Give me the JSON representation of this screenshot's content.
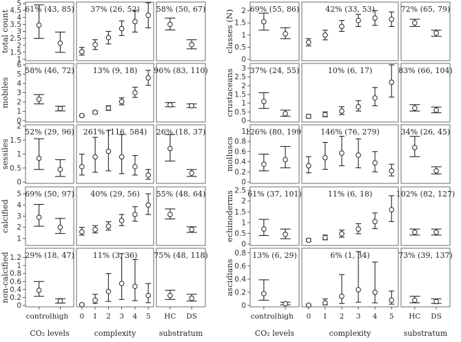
{
  "figure": {
    "columns": [
      {
        "xlabel": "CO₂ levels",
        "categories": [
          "control",
          "high"
        ]
      },
      {
        "xlabel": "complexity",
        "categories": [
          "0",
          "1",
          "2",
          "3",
          "4",
          "5"
        ]
      },
      {
        "xlabel": "substratum",
        "categories": [
          "HC",
          "DS"
        ]
      }
    ]
  },
  "chart_data": [
    {
      "type": "errorbar-panel-grid",
      "ylabel": "total count",
      "ylim": [
        1,
        5
      ],
      "yticks": [
        1,
        1.5,
        2,
        2.5,
        3,
        3.5,
        4,
        4.5,
        5
      ],
      "panels": [
        {
          "annotation": "61% (43, 85)",
          "points": [
            {
              "x": "control",
              "y": 3.45,
              "lo": 2.5,
              "hi": 4.9
            },
            {
              "x": "high",
              "y": 2.15,
              "lo": 1.5,
              "hi": 2.95
            }
          ]
        },
        {
          "annotation": "37% (26, 52)",
          "points": [
            {
              "x": "0",
              "y": 1.55,
              "lo": 1.3,
              "hi": 1.85
            },
            {
              "x": "1",
              "y": 2.05,
              "lo": 1.7,
              "hi": 2.4
            },
            {
              "x": "2",
              "y": 2.55,
              "lo": 2.1,
              "hi": 3.0
            },
            {
              "x": "3",
              "y": 3.2,
              "lo": 2.7,
              "hi": 3.75
            },
            {
              "x": "4",
              "y": 3.7,
              "lo": 2.95,
              "hi": 4.5
            },
            {
              "x": "5",
              "y": 4.15,
              "lo": 3.25,
              "hi": 5.05
            }
          ]
        },
        {
          "annotation": "58% (50, 67)",
          "points": [
            {
              "x": "HC",
              "y": 3.5,
              "lo": 3.1,
              "hi": 3.95
            },
            {
              "x": "DS",
              "y": 2.05,
              "lo": 1.75,
              "hi": 2.4
            }
          ]
        }
      ]
    },
    {
      "type": "errorbar-panel-grid",
      "ylabel": "mobiles",
      "ylim": [
        0,
        6
      ],
      "yticks": [
        0,
        1,
        2,
        3,
        4,
        5,
        6
      ],
      "panels": [
        {
          "annotation": "58% (46, 72)",
          "points": [
            {
              "x": "control",
              "y": 2.3,
              "lo": 1.8,
              "hi": 2.8
            },
            {
              "x": "high",
              "y": 1.3,
              "lo": 1.05,
              "hi": 1.55
            }
          ]
        },
        {
          "annotation": "13% (9, 18)",
          "points": [
            {
              "x": "0",
              "y": 0.55,
              "lo": 0.45,
              "hi": 0.65
            },
            {
              "x": "1",
              "y": 0.9,
              "lo": 0.75,
              "hi": 1.05
            },
            {
              "x": "2",
              "y": 1.35,
              "lo": 1.1,
              "hi": 1.6
            },
            {
              "x": "3",
              "y": 2.05,
              "lo": 1.7,
              "hi": 2.45
            },
            {
              "x": "4",
              "y": 3.0,
              "lo": 2.5,
              "hi": 3.6
            },
            {
              "x": "5",
              "y": 4.6,
              "lo": 3.8,
              "hi": 5.4
            }
          ]
        },
        {
          "annotation": "96% (83, 110)",
          "points": [
            {
              "x": "HC",
              "y": 1.7,
              "lo": 1.5,
              "hi": 1.95
            },
            {
              "x": "DS",
              "y": 1.6,
              "lo": 1.4,
              "hi": 1.8
            }
          ]
        }
      ]
    },
    {
      "type": "errorbar-panel-grid",
      "ylabel": "sessiles",
      "ylim": [
        0,
        2
      ],
      "yticks": [
        0,
        0.5,
        1,
        1.5,
        2
      ],
      "panels": [
        {
          "annotation": "52% (29, 96)",
          "points": [
            {
              "x": "control",
              "y": 0.85,
              "lo": 0.45,
              "hi": 1.55
            },
            {
              "x": "high",
              "y": 0.45,
              "lo": 0.2,
              "hi": 0.8
            }
          ]
        },
        {
          "annotation": "261% (116, 584)",
          "points": [
            {
              "x": "0",
              "y": 0.55,
              "lo": 0.25,
              "hi": 1.0
            },
            {
              "x": "1",
              "y": 0.9,
              "lo": 0.35,
              "hi": 1.6
            },
            {
              "x": "2",
              "y": 1.1,
              "lo": 0.4,
              "hi": 1.85
            },
            {
              "x": "3",
              "y": 0.9,
              "lo": 0.3,
              "hi": 1.7
            },
            {
              "x": "4",
              "y": 0.55,
              "lo": 0.25,
              "hi": 0.95
            },
            {
              "x": "5",
              "y": 0.25,
              "lo": 0.1,
              "hi": 0.45
            }
          ]
        },
        {
          "annotation": "26% (18, 37)",
          "points": [
            {
              "x": "HC",
              "y": 1.2,
              "lo": 0.75,
              "hi": 1.7
            },
            {
              "x": "DS",
              "y": 0.32,
              "lo": 0.2,
              "hi": 0.45
            }
          ]
        }
      ]
    },
    {
      "type": "errorbar-panel-grid",
      "ylabel": "calcified",
      "ylim": [
        0.5,
        5.5
      ],
      "yticks": [
        1,
        2,
        3,
        4,
        5
      ],
      "panels": [
        {
          "annotation": "69% (50, 97)",
          "points": [
            {
              "x": "control",
              "y": 2.9,
              "lo": 2.1,
              "hi": 4.05
            },
            {
              "x": "high",
              "y": 2.0,
              "lo": 1.45,
              "hi": 2.8
            }
          ]
        },
        {
          "annotation": "40% (29, 56)",
          "points": [
            {
              "x": "0",
              "y": 1.6,
              "lo": 1.3,
              "hi": 2.0
            },
            {
              "x": "1",
              "y": 1.8,
              "lo": 1.5,
              "hi": 2.15
            },
            {
              "x": "2",
              "y": 2.1,
              "lo": 1.75,
              "hi": 2.5
            },
            {
              "x": "3",
              "y": 2.6,
              "lo": 2.15,
              "hi": 3.15
            },
            {
              "x": "4",
              "y": 3.15,
              "lo": 2.55,
              "hi": 3.85
            },
            {
              "x": "5",
              "y": 4.0,
              "lo": 3.15,
              "hi": 5.0
            }
          ]
        },
        {
          "annotation": "55% (48, 64)",
          "points": [
            {
              "x": "HC",
              "y": 3.15,
              "lo": 2.75,
              "hi": 3.65
            },
            {
              "x": "DS",
              "y": 1.8,
              "lo": 1.55,
              "hi": 2.05
            }
          ]
        }
      ]
    },
    {
      "type": "errorbar-panel-grid",
      "ylabel": "non-calcified",
      "ylim": [
        0,
        1.4
      ],
      "yticks": [
        0,
        0.2,
        0.4,
        0.6,
        0.8,
        1.0,
        1.2
      ],
      "panels": [
        {
          "annotation": "29% (18, 47)",
          "points": [
            {
              "x": "control",
              "y": 0.38,
              "lo": 0.23,
              "hi": 0.6
            },
            {
              "x": "high",
              "y": 0.11,
              "lo": 0.06,
              "hi": 0.17
            }
          ]
        },
        {
          "annotation": "11% (3, 36)",
          "points": [
            {
              "x": "0",
              "y": 0.02,
              "lo": 0.01,
              "hi": 0.04
            },
            {
              "x": "1",
              "y": 0.13,
              "lo": 0.05,
              "hi": 0.28
            },
            {
              "x": "2",
              "y": 0.35,
              "lo": 0.1,
              "hi": 0.8
            },
            {
              "x": "3",
              "y": 0.55,
              "lo": 0.15,
              "hi": 1.3
            },
            {
              "x": "4",
              "y": 0.48,
              "lo": 0.12,
              "hi": 1.15
            },
            {
              "x": "5",
              "y": 0.25,
              "lo": 0.07,
              "hi": 0.55
            }
          ]
        },
        {
          "annotation": "75% (48, 118)",
          "points": [
            {
              "x": "HC",
              "y": 0.25,
              "lo": 0.15,
              "hi": 0.38
            },
            {
              "x": "DS",
              "y": 0.18,
              "lo": 0.11,
              "hi": 0.28
            }
          ]
        }
      ]
    },
    {
      "type": "errorbar-panel-grid",
      "ylabel": "classes (N)",
      "ylim": [
        0,
        2.3
      ],
      "yticks": [
        0,
        0.5,
        1.0,
        1.5,
        2.0
      ],
      "panels": [
        {
          "annotation": "69% (55, 86)",
          "points": [
            {
              "x": "control",
              "y": 1.55,
              "lo": 1.2,
              "hi": 1.9
            },
            {
              "x": "high",
              "y": 1.05,
              "lo": 0.85,
              "hi": 1.3
            }
          ]
        },
        {
          "annotation": "42% (33, 53)",
          "points": [
            {
              "x": "0",
              "y": 0.7,
              "lo": 0.55,
              "hi": 0.85
            },
            {
              "x": "1",
              "y": 1.0,
              "lo": 0.8,
              "hi": 1.2
            },
            {
              "x": "2",
              "y": 1.35,
              "lo": 1.15,
              "hi": 1.6
            },
            {
              "x": "3",
              "y": 1.6,
              "lo": 1.35,
              "hi": 1.85
            },
            {
              "x": "4",
              "y": 1.7,
              "lo": 1.4,
              "hi": 2.0
            },
            {
              "x": "5",
              "y": 1.65,
              "lo": 1.35,
              "hi": 1.95
            }
          ]
        },
        {
          "annotation": "72% (65, 79)",
          "points": [
            {
              "x": "HC",
              "y": 1.5,
              "lo": 1.35,
              "hi": 1.65
            },
            {
              "x": "DS",
              "y": 1.08,
              "lo": 0.95,
              "hi": 1.2
            }
          ]
        }
      ]
    },
    {
      "type": "errorbar-panel-grid",
      "ylabel": "crustaceans",
      "ylim": [
        0,
        3.2
      ],
      "yticks": [
        0,
        0.5,
        1.0,
        1.5,
        2.0,
        2.5,
        3.0
      ],
      "panels": [
        {
          "annotation": "37% (24, 55)",
          "points": [
            {
              "x": "control",
              "y": 1.1,
              "lo": 0.7,
              "hi": 1.6
            },
            {
              "x": "high",
              "y": 0.4,
              "lo": 0.25,
              "hi": 0.6
            }
          ]
        },
        {
          "annotation": "10% (6, 17)",
          "points": [
            {
              "x": "0",
              "y": 0.25,
              "lo": 0.15,
              "hi": 0.35
            },
            {
              "x": "1",
              "y": 0.35,
              "lo": 0.22,
              "hi": 0.5
            },
            {
              "x": "2",
              "y": 0.55,
              "lo": 0.35,
              "hi": 0.8
            },
            {
              "x": "3",
              "y": 0.8,
              "lo": 0.55,
              "hi": 1.15
            },
            {
              "x": "4",
              "y": 1.3,
              "lo": 0.85,
              "hi": 1.9
            },
            {
              "x": "5",
              "y": 2.2,
              "lo": 1.35,
              "hi": 3.2
            }
          ]
        },
        {
          "annotation": "83% (66, 104)",
          "points": [
            {
              "x": "HC",
              "y": 0.72,
              "lo": 0.55,
              "hi": 0.92
            },
            {
              "x": "DS",
              "y": 0.6,
              "lo": 0.45,
              "hi": 0.78
            }
          ]
        }
      ]
    },
    {
      "type": "errorbar-panel-grid",
      "ylabel": "molluscs",
      "ylim": [
        0,
        1.1
      ],
      "yticks": [
        0,
        0.2,
        0.4,
        0.6,
        0.8,
        1.0
      ],
      "panels": [
        {
          "annotation": "126% (80, 199)",
          "points": [
            {
              "x": "control",
              "y": 0.35,
              "lo": 0.22,
              "hi": 0.55
            },
            {
              "x": "high",
              "y": 0.44,
              "lo": 0.28,
              "hi": 0.7
            }
          ]
        },
        {
          "annotation": "146% (76, 279)",
          "points": [
            {
              "x": "0",
              "y": 0.32,
              "lo": 0.18,
              "hi": 0.5
            },
            {
              "x": "1",
              "y": 0.48,
              "lo": 0.25,
              "hi": 0.78
            },
            {
              "x": "2",
              "y": 0.57,
              "lo": 0.32,
              "hi": 0.9
            },
            {
              "x": "3",
              "y": 0.53,
              "lo": 0.28,
              "hi": 0.85
            },
            {
              "x": "4",
              "y": 0.38,
              "lo": 0.2,
              "hi": 0.6
            },
            {
              "x": "5",
              "y": 0.22,
              "lo": 0.12,
              "hi": 0.35
            }
          ]
        },
        {
          "annotation": "34% (26, 45)",
          "points": [
            {
              "x": "HC",
              "y": 0.68,
              "lo": 0.5,
              "hi": 0.9
            },
            {
              "x": "DS",
              "y": 0.22,
              "lo": 0.16,
              "hi": 0.3
            }
          ]
        }
      ]
    },
    {
      "type": "errorbar-panel-grid",
      "ylabel": "echinoderms",
      "ylim": [
        0,
        2.6
      ],
      "yticks": [
        0,
        0.5,
        1.0,
        1.5,
        2.0,
        2.5
      ],
      "panels": [
        {
          "annotation": "61% (37, 101)",
          "points": [
            {
              "x": "control",
              "y": 0.7,
              "lo": 0.4,
              "hi": 1.15
            },
            {
              "x": "high",
              "y": 0.45,
              "lo": 0.25,
              "hi": 0.7
            }
          ]
        },
        {
          "annotation": "11% (6, 18)",
          "points": [
            {
              "x": "0",
              "y": 0.18,
              "lo": 0.12,
              "hi": 0.25
            },
            {
              "x": "1",
              "y": 0.3,
              "lo": 0.2,
              "hi": 0.42
            },
            {
              "x": "2",
              "y": 0.48,
              "lo": 0.32,
              "hi": 0.65
            },
            {
              "x": "3",
              "y": 0.7,
              "lo": 0.48,
              "hi": 0.95
            },
            {
              "x": "4",
              "y": 1.05,
              "lo": 0.72,
              "hi": 1.45
            },
            {
              "x": "5",
              "y": 1.6,
              "lo": 1.05,
              "hi": 2.25
            }
          ]
        },
        {
          "annotation": "102% (82, 127)",
          "points": [
            {
              "x": "HC",
              "y": 0.55,
              "lo": 0.42,
              "hi": 0.7
            },
            {
              "x": "DS",
              "y": 0.55,
              "lo": 0.42,
              "hi": 0.7
            }
          ]
        }
      ]
    },
    {
      "type": "errorbar-panel-grid",
      "ylabel": "ascidians",
      "ylim": [
        0,
        0.85
      ],
      "yticks": [
        0,
        0.2,
        0.4,
        0.6,
        0.8
      ],
      "panels": [
        {
          "annotation": "13% (6, 29)",
          "points": [
            {
              "x": "control",
              "y": 0.18,
              "lo": 0.08,
              "hi": 0.39
            },
            {
              "x": "high",
              "y": 0.025,
              "lo": 0.01,
              "hi": 0.05
            }
          ]
        },
        {
          "annotation": "6% (1, 34)",
          "points": [
            {
              "x": "0",
              "y": 0.005,
              "lo": 0.0,
              "hi": 0.02
            },
            {
              "x": "1",
              "y": 0.04,
              "lo": 0.01,
              "hi": 0.1
            },
            {
              "x": "2",
              "y": 0.14,
              "lo": 0.03,
              "hi": 0.47
            },
            {
              "x": "3",
              "y": 0.24,
              "lo": 0.05,
              "hi": 0.82
            },
            {
              "x": "4",
              "y": 0.2,
              "lo": 0.04,
              "hi": 0.66
            },
            {
              "x": "5",
              "y": 0.08,
              "lo": 0.02,
              "hi": 0.22
            }
          ]
        },
        {
          "annotation": "73% (39, 137)",
          "points": [
            {
              "x": "HC",
              "y": 0.08,
              "lo": 0.04,
              "hi": 0.14
            },
            {
              "x": "DS",
              "y": 0.06,
              "lo": 0.03,
              "hi": 0.1
            }
          ]
        }
      ]
    }
  ]
}
